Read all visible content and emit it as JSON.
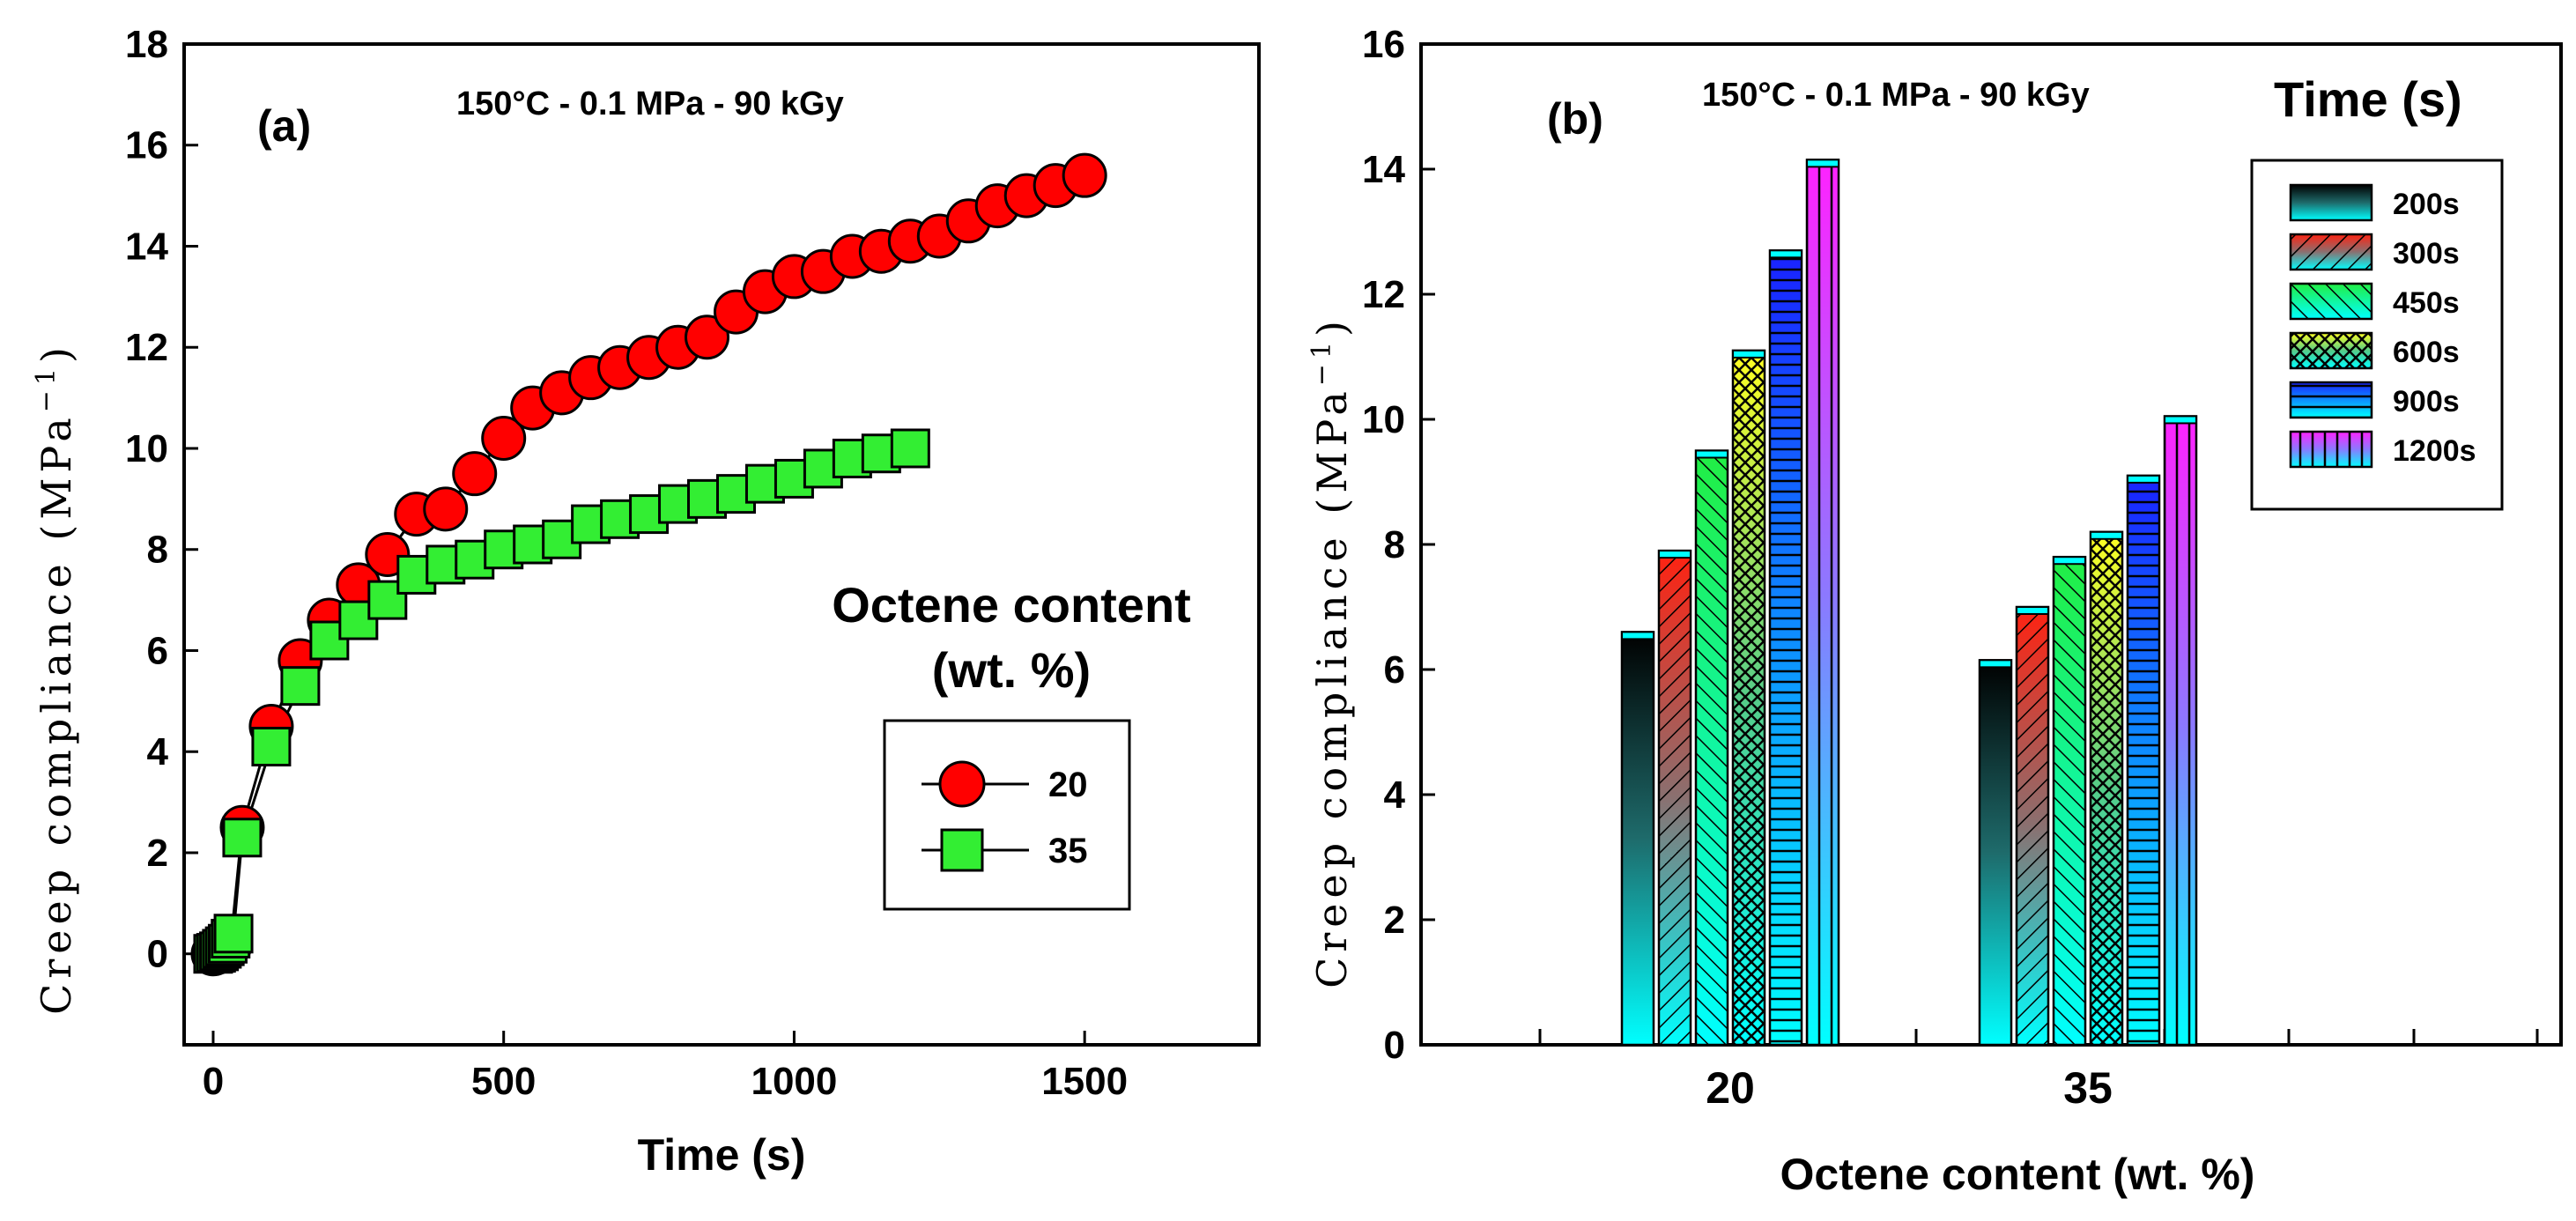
{
  "colors": {
    "red_marker": "#ff0000",
    "green_marker": "#33ee33",
    "cyan": "#00ffff",
    "bar_200s": "#1a3d3d",
    "bar_300s": "#ee3322",
    "bar_450s": "#33ee55",
    "bar_600s": "#ffff33",
    "bar_900s": "#2244ff",
    "bar_1200s": "#ff33ff"
  },
  "chart_data": [
    {
      "panel_label": "(a)",
      "type": "scatter",
      "condition": "150°C - 0.1 MPa - 90 kGy",
      "xlabel": "Time (s)",
      "ylabel": "Creep compliance (MPa",
      "ylabel_sup": "−1",
      "ylabel_close": ")",
      "xlim": [
        -50,
        1800
      ],
      "ylim": [
        -1.8,
        18
      ],
      "xticks": [
        0,
        500,
        1000,
        1500
      ],
      "xtick_labels": [
        "0",
        "500",
        "1000",
        "1500"
      ],
      "yticks": [
        0,
        2,
        4,
        6,
        8,
        10,
        12,
        14,
        16,
        18
      ],
      "ytick_labels": [
        "0",
        "2",
        "4",
        "6",
        "8",
        "10",
        "12",
        "14",
        "16",
        "18"
      ],
      "legend_title_line1": "Octene content",
      "legend_title_line2": "(wt. %)",
      "series": [
        {
          "name": "20",
          "marker": "circle",
          "color": "#ff0000",
          "x": [
            0,
            5,
            10,
            15,
            20,
            25,
            30,
            50,
            100,
            150,
            200,
            250,
            300,
            350,
            400,
            450,
            500,
            550,
            600,
            650,
            700,
            750,
            800,
            850,
            900,
            950,
            1000,
            1050,
            1100,
            1150,
            1200,
            1250,
            1300,
            1350,
            1400,
            1450,
            1500
          ],
          "y": [
            0,
            0.02,
            0.05,
            0.08,
            0.12,
            0.16,
            0.2,
            2.5,
            4.5,
            5.8,
            6.6,
            7.3,
            7.9,
            8.7,
            8.8,
            9.5,
            10.2,
            10.8,
            11.1,
            11.4,
            11.6,
            11.8,
            12.0,
            12.2,
            12.7,
            13.1,
            13.4,
            13.5,
            13.8,
            13.9,
            14.1,
            14.2,
            14.5,
            14.8,
            15.0,
            15.2,
            15.4
          ]
        },
        {
          "name": "35",
          "marker": "square",
          "color": "#33ee33",
          "x": [
            0,
            5,
            10,
            15,
            20,
            25,
            30,
            35,
            50,
            100,
            150,
            200,
            250,
            300,
            350,
            400,
            450,
            500,
            550,
            600,
            650,
            700,
            750,
            800,
            850,
            900,
            950,
            1000,
            1050,
            1100,
            1150,
            1200
          ],
          "y": [
            0,
            0.02,
            0.05,
            0.1,
            0.15,
            0.2,
            0.3,
            0.4,
            2.3,
            4.1,
            5.3,
            6.2,
            6.6,
            7.0,
            7.5,
            7.7,
            7.8,
            8.0,
            8.1,
            8.2,
            8.5,
            8.6,
            8.7,
            8.9,
            9.0,
            9.1,
            9.3,
            9.4,
            9.6,
            9.8,
            9.9,
            10.0
          ]
        }
      ]
    },
    {
      "panel_label": "(b)",
      "type": "bar",
      "condition": "150°C - 0.1 MPa - 90 kGy",
      "legend_title": "Time (s)",
      "xlabel": "Octene content (wt. %)",
      "ylabel": "Creep compliance (MPa",
      "ylabel_sup": "−1",
      "ylabel_close": ")",
      "ylim": [
        0,
        16
      ],
      "yticks": [
        0,
        2,
        4,
        6,
        8,
        10,
        12,
        14,
        16
      ],
      "ytick_labels": [
        "0",
        "2",
        "4",
        "6",
        "8",
        "10",
        "12",
        "14",
        "16"
      ],
      "categories": [
        "20",
        "35"
      ],
      "series": [
        {
          "name": "200s",
          "values": [
            6.6,
            6.15
          ]
        },
        {
          "name": "300s",
          "values": [
            7.9,
            7.0
          ]
        },
        {
          "name": "450s",
          "values": [
            9.5,
            7.8
          ]
        },
        {
          "name": "600s",
          "values": [
            11.1,
            8.2
          ]
        },
        {
          "name": "900s",
          "values": [
            12.7,
            9.1
          ]
        },
        {
          "name": "1200s",
          "values": [
            14.15,
            10.05
          ]
        }
      ]
    }
  ]
}
